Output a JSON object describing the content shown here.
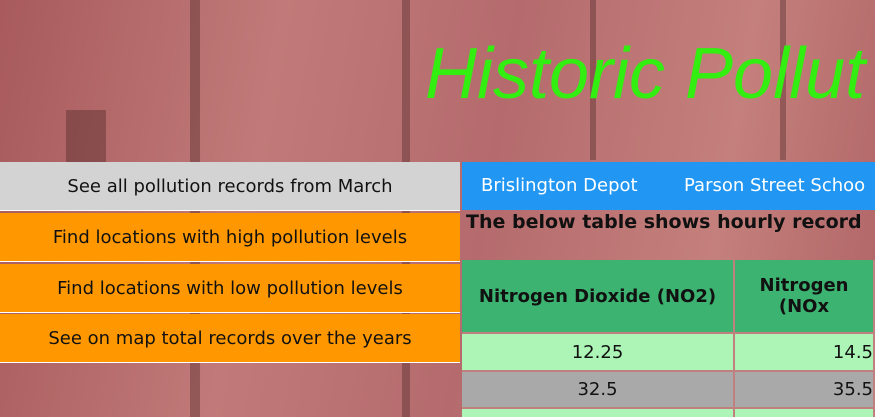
{
  "header": {
    "title": "Historic Pollut"
  },
  "sidebar": {
    "buttons": [
      "See all pollution records from March",
      "Find locations with high pollution levels",
      "Find locations with low pollution levels",
      "See on map total records over the years"
    ]
  },
  "nav": {
    "links": [
      "Brislington Depot",
      "Parson Street Schoo"
    ]
  },
  "intro": "The below table shows hourly record",
  "table": {
    "headers": [
      "Nitrogen Dioxide (NO2)",
      "Nitrogen (NOx"
    ],
    "rows": [
      [
        "12.25",
        "14.5"
      ],
      [
        "32.5",
        "35.5"
      ]
    ]
  }
}
